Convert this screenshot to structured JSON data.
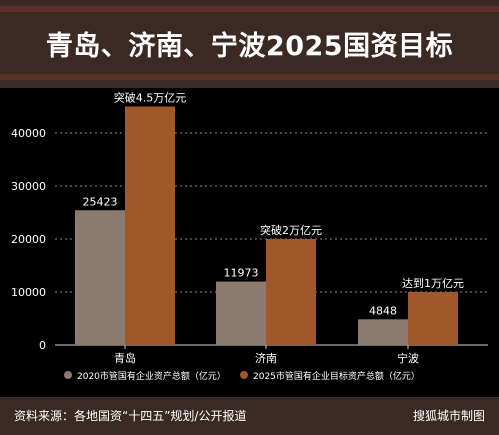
{
  "header": {
    "title": "青岛、济南、宁波2025国资目标"
  },
  "footer": {
    "source": "资料来源：各地国资“十四五”规划/公开报道",
    "credit": "搜狐城市制图"
  },
  "colors": {
    "series_2020": "#8c7b70",
    "series_2025": "#a0582a",
    "background": "#000000",
    "header_bg": "#3b2a24",
    "accent_stripe": "#5a3228"
  },
  "chart_data": {
    "type": "bar",
    "title": "",
    "xlabel": "",
    "ylabel": "",
    "categories": [
      "青岛",
      "济南",
      "宁波"
    ],
    "ylim": [
      0,
      45000
    ],
    "yticks": [
      0,
      10000,
      20000,
      30000,
      40000
    ],
    "grid": true,
    "legend_position": "bottom",
    "series": [
      {
        "name": "2020市管国有企业资产总额（亿元）",
        "values": [
          25423,
          11973,
          4848
        ],
        "labels": [
          "25423",
          "11973",
          "4848"
        ]
      },
      {
        "name": "2025市管国有企业目标资产总额（亿元）",
        "values": [
          45000,
          20000,
          10000
        ],
        "labels": [
          "突破4.5万亿元",
          "突破2万亿元",
          "达到1万亿元"
        ]
      }
    ]
  }
}
